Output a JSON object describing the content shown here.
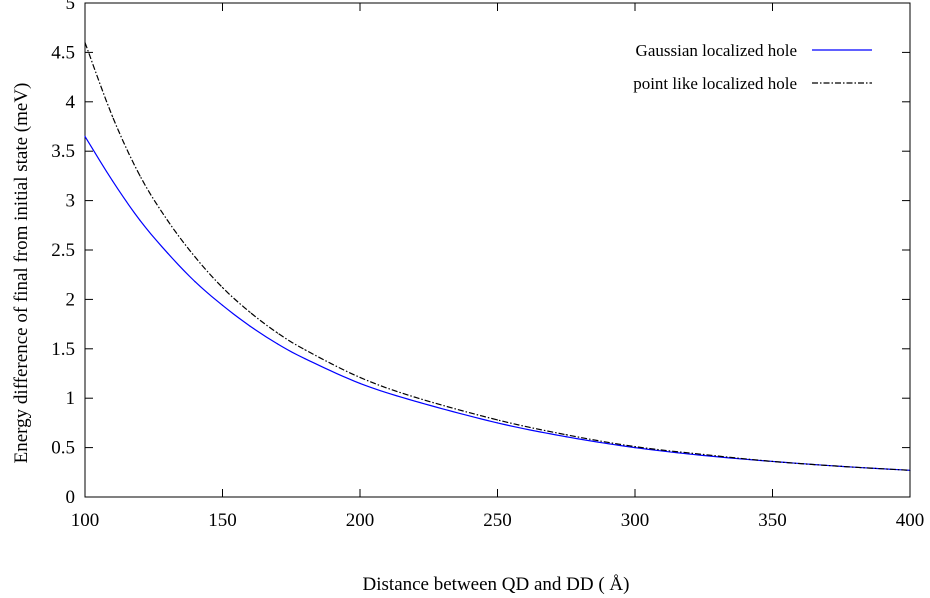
{
  "chart_data": {
    "type": "line",
    "xlabel": "Distance between QD and DD ( Å)",
    "ylabel": "Energy difference of final from initial state (meV)",
    "xlim": [
      100,
      400
    ],
    "ylim": [
      0,
      5
    ],
    "x_ticks": [
      "100",
      "150",
      "200",
      "250",
      "300",
      "350",
      "400"
    ],
    "y_ticks": [
      "0",
      "0.5",
      "1",
      "1.5",
      "2",
      "2.5",
      "3",
      "3.5",
      "4",
      "4.5",
      "5"
    ],
    "grid": false,
    "legend_position": "top-right",
    "series": [
      {
        "name": "Gaussian localized hole",
        "color": "#0000ff",
        "style": "solid",
        "x": [
          100,
          110,
          120,
          130,
          140,
          150,
          160,
          170,
          180,
          200,
          220,
          250,
          275,
          300,
          325,
          350,
          375,
          400
        ],
        "y": [
          3.65,
          3.2,
          2.8,
          2.47,
          2.18,
          1.94,
          1.73,
          1.55,
          1.4,
          1.15,
          0.97,
          0.75,
          0.61,
          0.5,
          0.42,
          0.36,
          0.31,
          0.27
        ]
      },
      {
        "name": "point like localized hole",
        "color": "#000000",
        "style": "dash-dot",
        "x": [
          100,
          110,
          120,
          130,
          140,
          150,
          160,
          170,
          180,
          200,
          220,
          250,
          275,
          300,
          325,
          350,
          375,
          400
        ],
        "y": [
          4.6,
          3.85,
          3.25,
          2.8,
          2.43,
          2.12,
          1.87,
          1.66,
          1.49,
          1.21,
          1.01,
          0.78,
          0.63,
          0.51,
          0.43,
          0.36,
          0.31,
          0.27
        ]
      }
    ]
  }
}
